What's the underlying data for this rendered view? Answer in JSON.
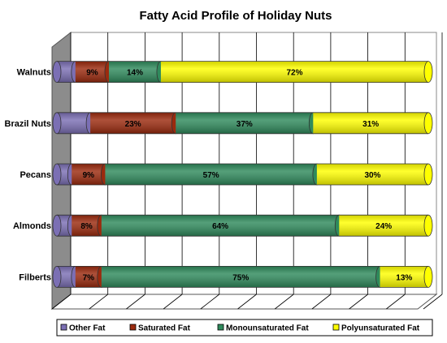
{
  "chart_data": {
    "type": "bar",
    "orientation": "horizontal",
    "stacked": "percent",
    "style": "3d-cylinder",
    "title": "Fatty Acid Profile of Holiday Nuts",
    "categories": [
      "Walnuts",
      "Brazil Nuts",
      "Pecans",
      "Almonds",
      "Filberts"
    ],
    "series": [
      {
        "name": "Other Fat",
        "color": "#7b6fb4",
        "values": [
          5,
          9,
          4,
          4,
          5
        ]
      },
      {
        "name": "Saturated Fat",
        "color": "#9b2a0e",
        "values": [
          9,
          23,
          9,
          8,
          7
        ]
      },
      {
        "name": "Monounsaturated Fat",
        "color": "#2f8a5c",
        "values": [
          14,
          37,
          57,
          64,
          75
        ]
      },
      {
        "name": "Polyunsaturated Fat",
        "color": "#ffff00",
        "values": [
          72,
          31,
          30,
          24,
          13
        ]
      }
    ],
    "data_labels": [
      [
        "",
        "9%",
        "14%",
        "72%"
      ],
      [
        "",
        "23%",
        "37%",
        "31%"
      ],
      [
        "",
        "9%",
        "57%",
        "30%"
      ],
      [
        "",
        "8%",
        "64%",
        "24%"
      ],
      [
        "",
        "7%",
        "75%",
        "13%"
      ]
    ],
    "xlim": [
      0,
      100
    ],
    "grid": true,
    "legend_position": "bottom"
  }
}
